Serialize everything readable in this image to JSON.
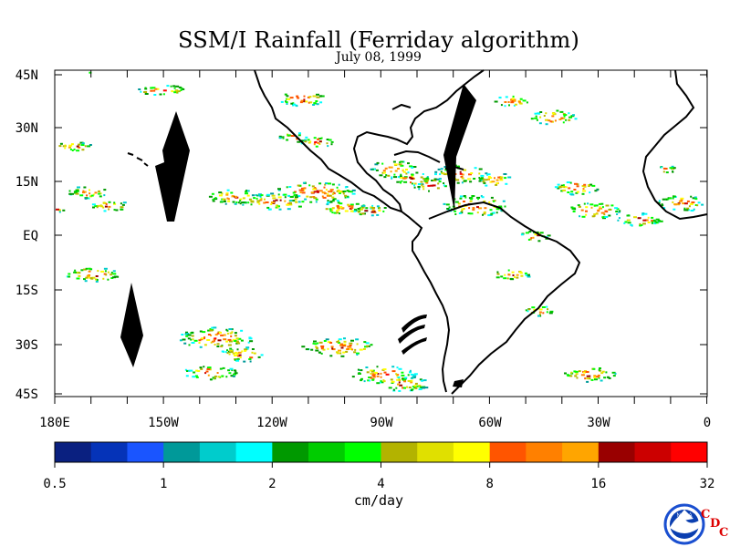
{
  "header": {
    "title": "SSM/I Rainfall (Ferriday algorithm)",
    "date": "July 08, 1999"
  },
  "axes": {
    "lat_labels": [
      "45N",
      "30N",
      "15N",
      "EQ",
      "15S",
      "30S",
      "45S"
    ],
    "lon_labels": [
      "180E",
      "150W",
      "120W",
      "90W",
      "60W",
      "30W",
      "0"
    ]
  },
  "colorbar": {
    "units": "cm/day",
    "tick_labels": [
      "0.5",
      "1",
      "2",
      "4",
      "8",
      "16",
      "32"
    ],
    "colors": [
      "#0a2080",
      "#0533b8",
      "#1a55ff",
      "#009999",
      "#00cccc",
      "#00ffff",
      "#009900",
      "#00cc00",
      "#00ff00",
      "#b3b300",
      "#e0e000",
      "#ffff00",
      "#ff5500",
      "#ff8000",
      "#ffa500",
      "#990000",
      "#cc0000",
      "#ff0000"
    ]
  },
  "logo": {
    "text": "NOAA",
    "letters": [
      "C",
      "D",
      "C"
    ],
    "ring_color": "#1a4fd0",
    "brand_color": "#dd0000"
  }
}
